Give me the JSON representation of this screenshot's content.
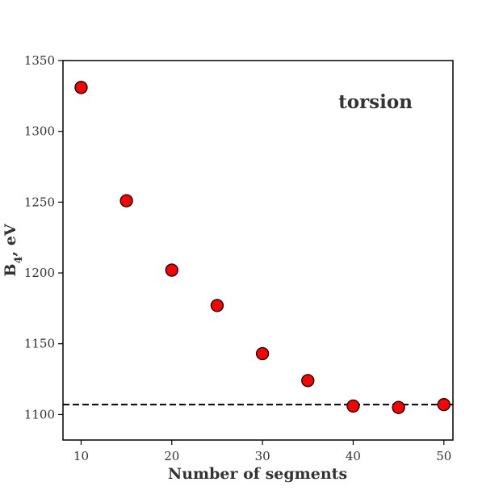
{
  "chart_data": {
    "type": "scatter",
    "title": "",
    "xlabel": "Number of segments",
    "ylabel": {
      "base": "B",
      "sub": "4",
      "rest": ", eV"
    },
    "annotation": "torsion",
    "x": [
      10,
      15,
      20,
      25,
      30,
      35,
      40,
      45,
      50
    ],
    "y": [
      1331,
      1251,
      1202,
      1177,
      1143,
      1124,
      1106,
      1105,
      1107
    ],
    "xlim": [
      8,
      51
    ],
    "ylim": [
      1082,
      1350
    ],
    "xticks": [
      10,
      20,
      30,
      40,
      50
    ],
    "yticks": [
      1100,
      1150,
      1200,
      1250,
      1300,
      1350
    ],
    "reference_line": {
      "y": 1107,
      "style": "dashed",
      "color": "#000000"
    },
    "marker_color": "#ff0000",
    "marker_edge_color": "#000000",
    "grid": false,
    "legend": "none"
  }
}
